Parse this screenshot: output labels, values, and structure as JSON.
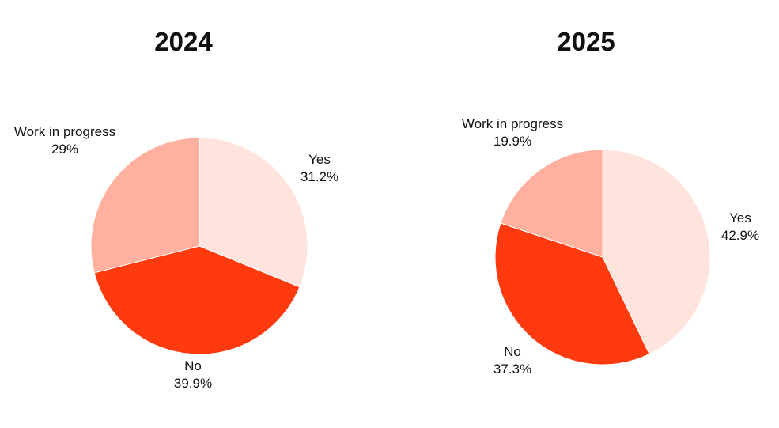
{
  "chart_data": [
    {
      "type": "pie",
      "title": "2024",
      "slices": [
        {
          "label": "Yes",
          "value": 31.2,
          "value_label": "31.2%",
          "color": "#FFE4DE"
        },
        {
          "label": "No",
          "value": 39.9,
          "value_label": "39.9%",
          "color": "#FF3A0E"
        },
        {
          "label": "Work in progress",
          "value": 29,
          "value_label": "29%",
          "color": "#FFB09E"
        }
      ],
      "start": "12 o'clock",
      "direction": "clockwise",
      "legend": "none (direct labels)"
    },
    {
      "type": "pie",
      "title": "2025",
      "slices": [
        {
          "label": "Yes",
          "value": 42.9,
          "value_label": "42.9%",
          "color": "#FFE4DE"
        },
        {
          "label": "No",
          "value": 37.3,
          "value_label": "37.3%",
          "color": "#FF3A0E"
        },
        {
          "label": "Work in progress",
          "value": 19.9,
          "value_label": "19.9%",
          "color": "#FFB09E"
        }
      ],
      "start": "12 o'clock",
      "direction": "clockwise",
      "legend": "none (direct labels)"
    }
  ]
}
